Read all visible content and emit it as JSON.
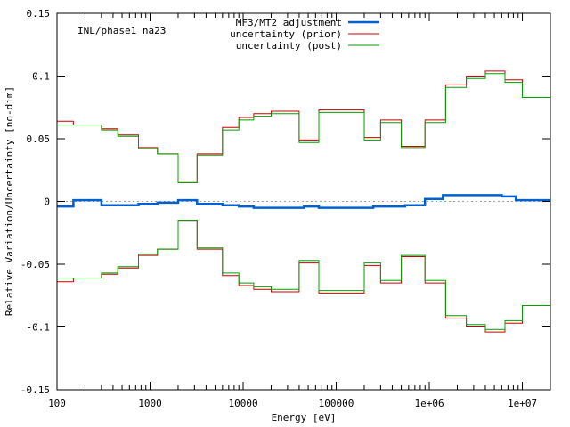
{
  "chart_data": {
    "type": "line",
    "step": true,
    "annotation": "INL/phase1 na23",
    "xlabel": "Energy [eV]",
    "ylabel": "Relative Variation/Uncertainty [no-dim]",
    "xscale": "log",
    "xlim": [
      100,
      20000000
    ],
    "ylim": [
      -0.15,
      0.15
    ],
    "xticks": [
      {
        "value": 100,
        "label": "100"
      },
      {
        "value": 1000,
        "label": "1000"
      },
      {
        "value": 10000,
        "label": "10000"
      },
      {
        "value": 100000,
        "label": "100000"
      },
      {
        "value": 1000000,
        "label": "1e+06"
      },
      {
        "value": 10000000,
        "label": "1e+07"
      }
    ],
    "yticks": [
      {
        "value": -0.15,
        "label": "-0.15"
      },
      {
        "value": -0.1,
        "label": "-0.1"
      },
      {
        "value": -0.05,
        "label": "-0.05"
      },
      {
        "value": 0,
        "label": "0"
      },
      {
        "value": 0.05,
        "label": "0.05"
      },
      {
        "value": 0.1,
        "label": "0.1"
      },
      {
        "value": 0.15,
        "label": "0.15"
      }
    ],
    "legend_position": "top-center",
    "grid": false,
    "zero_line": true,
    "bin_edges": [
      100,
      150,
      300,
      450,
      750,
      1200,
      2000,
      3200,
      6000,
      9000,
      13000,
      20000,
      30000,
      45000,
      65000,
      170000,
      250000,
      400000,
      550000,
      900000,
      1400000,
      2500000,
      4000000,
      6000000,
      8500000,
      20000000
    ],
    "series": [
      {
        "name": "MF3/MT2 adjustment",
        "color": "#0060d0",
        "width": 2.5,
        "values": [
          -0.004,
          0.001,
          -0.003,
          -0.003,
          -0.002,
          -0.001,
          0.001,
          -0.002,
          -0.003,
          -0.004,
          -0.005,
          -0.005,
          -0.005,
          -0.004,
          -0.005,
          -0.005,
          -0.004,
          -0.004,
          -0.003,
          0.002,
          0.005,
          0.005,
          0.005,
          0.004,
          0.001
        ]
      },
      {
        "name": "uncertainty (prior)",
        "color": "#cc0000",
        "width": 1,
        "mirror": true,
        "values": [
          0.064,
          0.061,
          0.058,
          0.053,
          0.043,
          0.038,
          0.015,
          0.038,
          0.059,
          0.067,
          0.07,
          0.072,
          0.049,
          0.073,
          0.051,
          0.065,
          0.044,
          0.065,
          0.093,
          0.1,
          0.104,
          0.097,
          0.083
        ]
      },
      {
        "name": "uncertainty (post)",
        "color": "#00a000",
        "width": 1,
        "mirror": true,
        "values": [
          0.061,
          0.061,
          0.057,
          0.052,
          0.042,
          0.038,
          0.015,
          0.037,
          0.057,
          0.065,
          0.068,
          0.07,
          0.047,
          0.071,
          0.049,
          0.063,
          0.043,
          0.063,
          0.091,
          0.098,
          0.102,
          0.095,
          0.083
        ]
      }
    ]
  },
  "uncertainty_bin_edges": [
    100,
    150,
    300,
    450,
    750,
    1200,
    2000,
    3200,
    6000,
    9000,
    13000,
    20000,
    40000,
    65000,
    200000,
    300000,
    500000,
    900000,
    1500000,
    2500000,
    4000000,
    6500000,
    10000000,
    20000000
  ]
}
